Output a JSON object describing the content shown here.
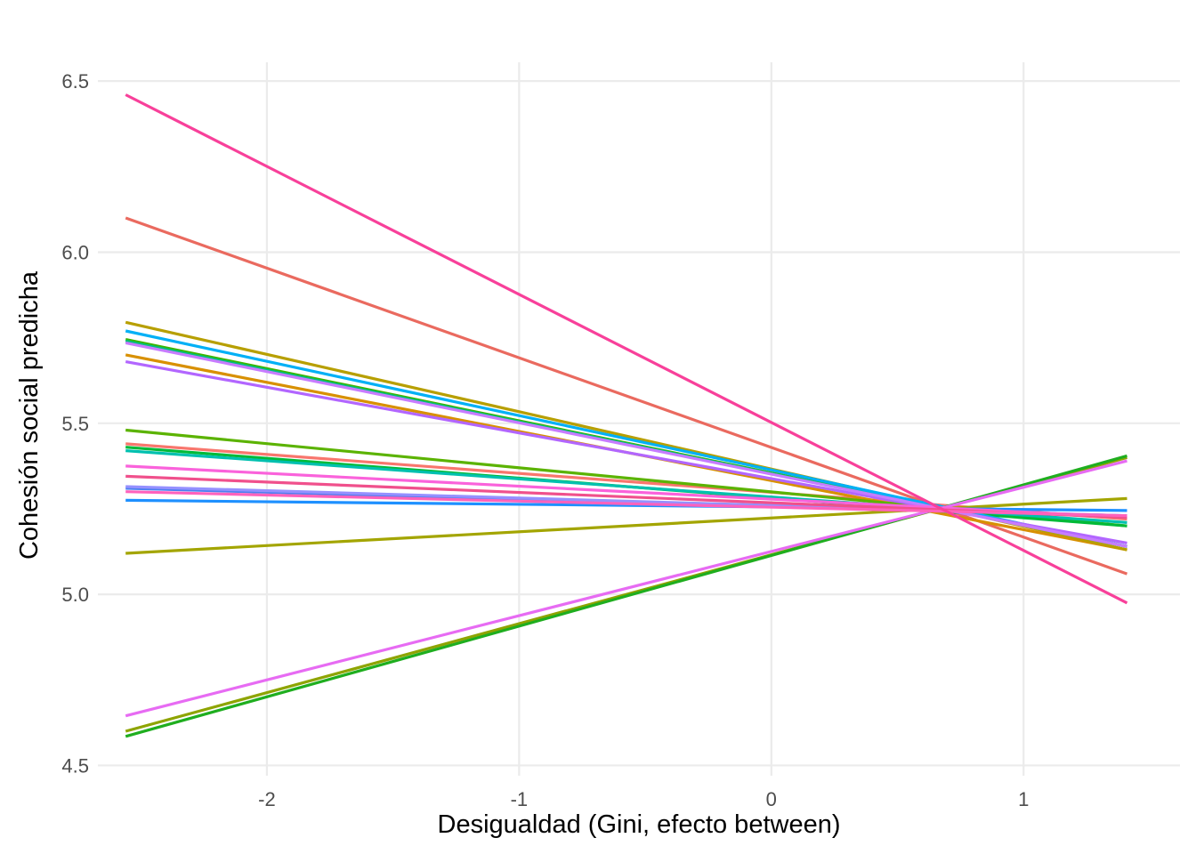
{
  "chart_data": {
    "type": "line",
    "xlabel": "Desigualdad (Gini, efecto between)",
    "ylabel": "Cohesión social predicha",
    "xlim": [
      -2.67,
      1.62
    ],
    "ylim": [
      4.47,
      6.555
    ],
    "x_ticks": [
      -2,
      -1,
      0,
      1
    ],
    "x_tick_labels": [
      "-2",
      "-1",
      "0",
      "1"
    ],
    "y_ticks": [
      4.5,
      5.0,
      5.5,
      6.0,
      6.5
    ],
    "y_tick_labels": [
      "4.5",
      "5.0",
      "5.5",
      "6.0",
      "6.5"
    ],
    "grid": true,
    "legend": "none",
    "x": [
      -2.56,
      1.41
    ],
    "series": [
      {
        "color": "#F8766D",
        "values": [
          5.44,
          5.22
        ]
      },
      {
        "color": "#EA6A5F",
        "values": [
          6.1,
          5.06
        ]
      },
      {
        "color": "#D89000",
        "values": [
          5.7,
          5.13
        ]
      },
      {
        "color": "#B79F00",
        "values": [
          5.795,
          5.13
        ]
      },
      {
        "color": "#A3A500",
        "values": [
          5.12,
          5.28
        ]
      },
      {
        "color": "#8EA400",
        "values": [
          4.6,
          5.4
        ]
      },
      {
        "color": "#5BB300",
        "values": [
          5.48,
          5.2
        ]
      },
      {
        "color": "#39B600",
        "values": [
          5.745,
          5.14
        ]
      },
      {
        "color": "#1FAE1F",
        "values": [
          4.585,
          5.405
        ]
      },
      {
        "color": "#00BA38",
        "values": [
          5.43,
          5.2
        ]
      },
      {
        "color": "#00BF7D",
        "values": [
          5.74,
          5.14
        ]
      },
      {
        "color": "#00C0AF",
        "values": [
          5.42,
          5.21
        ]
      },
      {
        "color": "#00B0F6",
        "values": [
          5.77,
          5.14
        ]
      },
      {
        "color": "#1E90FF",
        "values": [
          5.275,
          5.245
        ]
      },
      {
        "color": "#4C7FF0",
        "values": [
          5.31,
          5.23
        ]
      },
      {
        "color": "#9590FF",
        "values": [
          5.315,
          5.23
        ]
      },
      {
        "color": "#B266FF",
        "values": [
          5.68,
          5.15
        ]
      },
      {
        "color": "#C77CFF",
        "values": [
          5.735,
          5.14
        ]
      },
      {
        "color": "#E76BF3",
        "values": [
          4.645,
          5.39
        ]
      },
      {
        "color": "#FA62DB",
        "values": [
          5.375,
          5.225
        ]
      },
      {
        "color": "#F0508C",
        "values": [
          5.345,
          5.225
        ]
      },
      {
        "color": "#FF62BC",
        "values": [
          5.3,
          5.23
        ]
      },
      {
        "color": "#F8409A",
        "values": [
          6.46,
          4.975
        ]
      }
    ]
  }
}
